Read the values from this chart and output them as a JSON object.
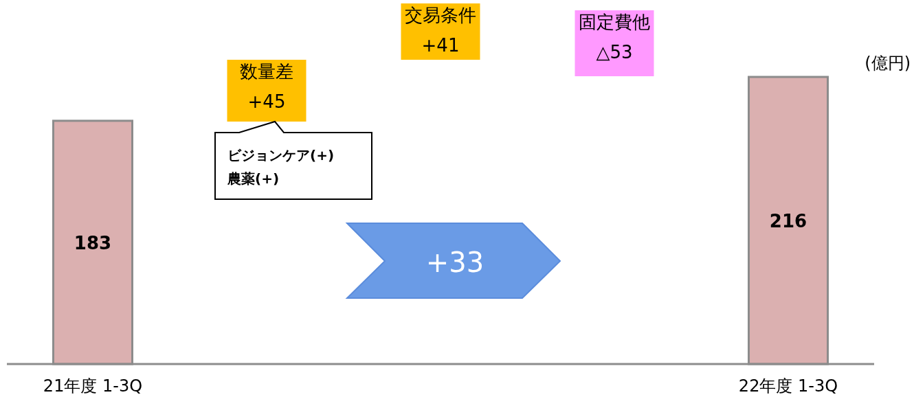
{
  "chart_data": {
    "type": "bar",
    "ylabel": "(億円)",
    "categories": [
      "21年度 1-3Q",
      null,
      null,
      null,
      "22年度 1-3Q"
    ],
    "values": [
      183,
      null,
      null,
      null,
      216
    ],
    "colors": [
      "#dbb0b0",
      null,
      null,
      null,
      "#dbb0b0"
    ],
    "data_labels": true,
    "annotations": [
      "数量差\n+45",
      "交易条件\n+41",
      "固定費他\n△53",
      "ビジョンケア(+)\n農薬(+)",
      "+33"
    ]
  }
}
